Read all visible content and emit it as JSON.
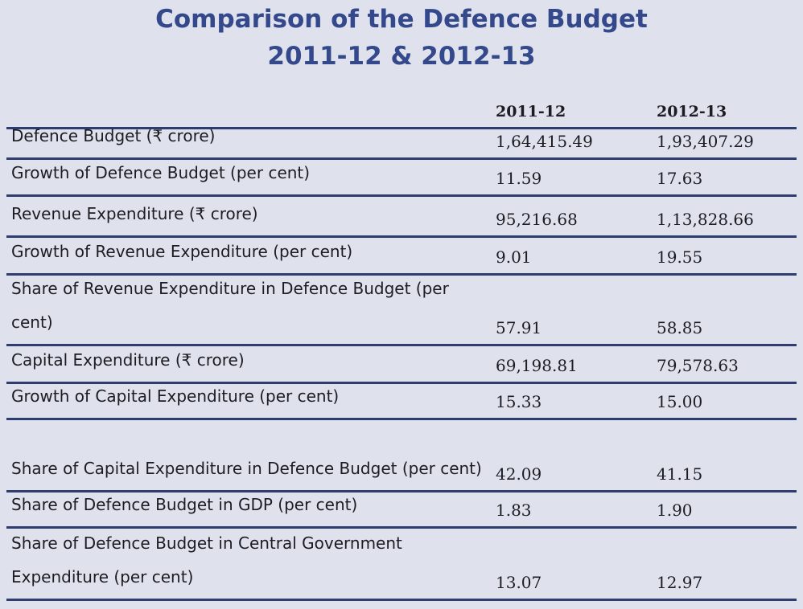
{
  "title": {
    "line1": "Comparison of the Defence Budget",
    "line2": "2011-12 & 2012-13"
  },
  "columns": [
    "2011-12",
    "2012-13"
  ],
  "rows": [
    {
      "label": "Defence Budget (₹ crore)",
      "v2011": "1,64,415.49",
      "v2012": "1,93,407.29"
    },
    {
      "label": "Growth of Defence Budget (per cent)",
      "v2011": "11.59",
      "v2012": "17.63"
    },
    {
      "label": "Revenue Expenditure (₹ crore)",
      "v2011": "95,216.68",
      "v2012": "1,13,828.66"
    },
    {
      "label": "Growth of Revenue Expenditure (per cent)",
      "v2011": "9.01",
      "v2012": "19.55"
    },
    {
      "label": "Share of Revenue Expenditure in Defence Budget (per cent)",
      "v2011": "57.91",
      "v2012": "58.85"
    },
    {
      "label": "Capital Expenditure (₹ crore)",
      "v2011": "69,198.81",
      "v2012": "79,578.63"
    },
    {
      "label": "Growth of Capital Expenditure (per cent)",
      "v2011": "15.33",
      "v2012": "15.00"
    },
    {
      "label": "Share of Capital Expenditure in Defence Budget (per cent)",
      "v2011": "42.09",
      "v2012": "41.15"
    },
    {
      "label": "Share of Defence Budget in GDP (per cent)",
      "v2011": "1.83",
      "v2012": "1.90"
    },
    {
      "label": "Share of Defence Budget in Central Government Expenditure (per cent)",
      "v2011": "13.07",
      "v2012": "12.97"
    }
  ],
  "colors": {
    "title": "#34488c",
    "rule": "#2f3c6e",
    "background": "#dfe2ec"
  }
}
